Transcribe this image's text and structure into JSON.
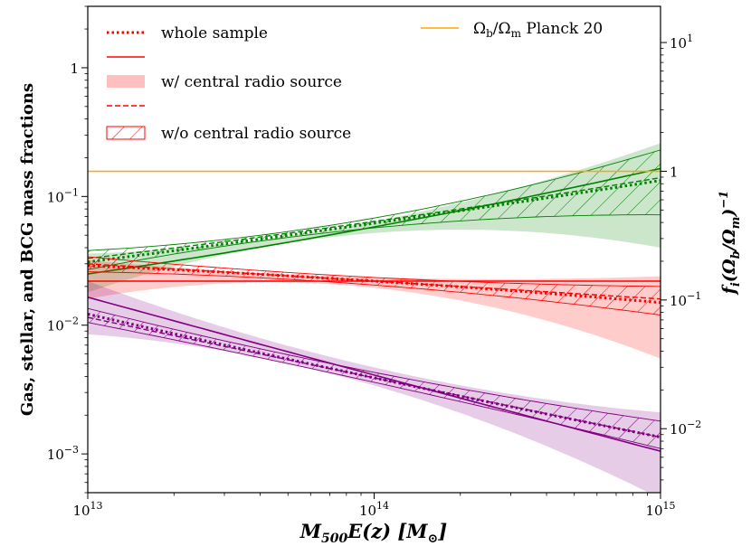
{
  "chart_data": {
    "type": "line",
    "xscale": "log",
    "yscale": "log",
    "xlim": [
      10000000000000.0,
      1000000000000000.0
    ],
    "ylim": [
      0.0005,
      3.0
    ],
    "xlabel": "M500E(z) [M⊙]",
    "ylabel": "Gas, stellar, and BCG mass fractions",
    "y2label": "fi(Ωb/Ωm)−1",
    "x_ticks": [
      {
        "v": 10000000000000.0,
        "b": "10",
        "e": "13"
      },
      {
        "v": 100000000000000.0,
        "b": "10",
        "e": "14"
      },
      {
        "v": 1000000000000000.0,
        "b": "10",
        "e": "15"
      }
    ],
    "y_ticks": [
      {
        "v": 0.001,
        "b": "10",
        "e": "−3"
      },
      {
        "v": 0.01,
        "b": "10",
        "e": "−2"
      },
      {
        "v": 0.1,
        "b": "10",
        "e": "−1"
      },
      {
        "v": 1,
        "b": "1",
        "e": ""
      }
    ],
    "y2_ticks": [
      {
        "v": 0.01,
        "b": "10",
        "e": "−2"
      },
      {
        "v": 0.1,
        "b": "10",
        "e": "−1"
      },
      {
        "v": 1,
        "b": "1",
        "e": ""
      },
      {
        "v": 10,
        "b": "10",
        "e": "1"
      }
    ],
    "y2_factor": 0.157,
    "planck": {
      "value": 0.157,
      "label": "Ωb/Ωm Planck 20",
      "color": "#ffa500"
    },
    "legend": {
      "position": "top-left",
      "entries": [
        {
          "label": "whole sample",
          "style": "dotted"
        },
        {
          "label": "",
          "style": "solid"
        },
        {
          "label": "w/ central radio source",
          "style": "band"
        },
        {
          "label": "",
          "style": "dashed"
        },
        {
          "label": "w/o central radio source",
          "style": "hatch"
        }
      ]
    },
    "x": [
      10000000000000.0,
      100000000000000.0,
      1000000000000000.0
    ],
    "series": [
      {
        "component": "gas",
        "color": "#008000",
        "whole": [
          0.031,
          0.062,
          0.133
        ],
        "with_radio": {
          "mid": [
            0.025,
            0.058,
            0.165
          ],
          "lo": [
            0.018,
            0.052,
            0.04
          ],
          "hi": [
            0.036,
            0.064,
            0.26
          ]
        },
        "without_radio": {
          "mid": [
            0.033,
            0.064,
            0.14
          ],
          "lo": [
            0.027,
            0.057,
            0.072
          ],
          "hi": [
            0.038,
            0.068,
            0.23
          ]
        }
      },
      {
        "component": "stellar",
        "color": "#ff0000",
        "whole": [
          0.029,
          0.022,
          0.015
        ],
        "with_radio": {
          "mid": [
            0.022,
            0.022,
            0.022
          ],
          "lo": [
            0.016,
            0.0195,
            0.0055
          ],
          "hi": [
            0.032,
            0.0235,
            0.024
          ]
        },
        "without_radio": {
          "mid": [
            0.03,
            0.022,
            0.016
          ],
          "lo": [
            0.026,
            0.0205,
            0.012
          ],
          "hi": [
            0.034,
            0.0235,
            0.02
          ]
        }
      },
      {
        "component": "BCG",
        "color": "#800080",
        "whole": [
          0.0122,
          0.0039,
          0.00135
        ],
        "with_radio": {
          "mid": [
            0.0165,
            0.0041,
            0.00105
          ],
          "lo": [
            0.0085,
            0.0034,
            0.00045
          ],
          "hi": [
            0.022,
            0.0047,
            0.0021
          ]
        },
        "without_radio": {
          "mid": [
            0.0115,
            0.0039,
            0.00135
          ],
          "lo": [
            0.0105,
            0.0036,
            0.0011
          ],
          "hi": [
            0.0135,
            0.0043,
            0.0018
          ]
        }
      }
    ]
  }
}
